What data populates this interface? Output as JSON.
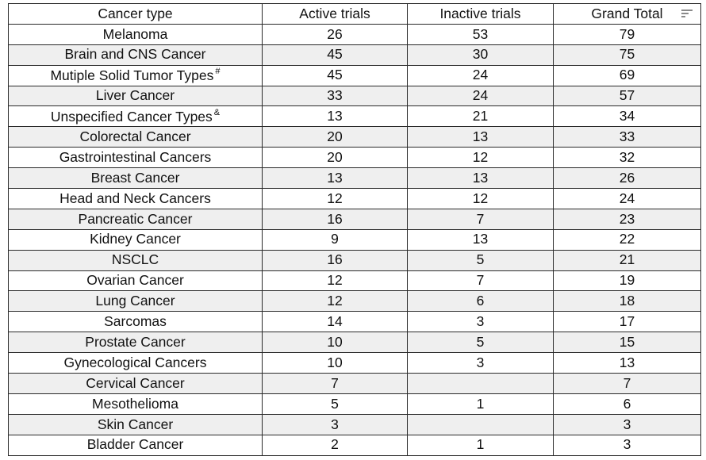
{
  "table": {
    "headers": [
      "Cancer type",
      "Active trials",
      "Inactive trials",
      "Grand Total"
    ],
    "sort_icon": "filter-sort-icon",
    "rows": [
      {
        "type": "Melanoma",
        "sup": "",
        "active": "26",
        "inactive": "53",
        "total": "79"
      },
      {
        "type": "Brain and CNS Cancer",
        "sup": "",
        "active": "45",
        "inactive": "30",
        "total": "75"
      },
      {
        "type": "Mutiple Solid Tumor Types",
        "sup": "#",
        "active": "45",
        "inactive": "24",
        "total": "69"
      },
      {
        "type": "Liver Cancer",
        "sup": "",
        "active": "33",
        "inactive": "24",
        "total": "57"
      },
      {
        "type": "Unspecified Cancer Types",
        "sup": "&",
        "active": "13",
        "inactive": "21",
        "total": "34"
      },
      {
        "type": "Colorectal Cancer",
        "sup": "",
        "active": "20",
        "inactive": "13",
        "total": "33"
      },
      {
        "type": "Gastrointestinal Cancers",
        "sup": "",
        "active": "20",
        "inactive": "12",
        "total": "32"
      },
      {
        "type": "Breast Cancer",
        "sup": "",
        "active": "13",
        "inactive": "13",
        "total": "26"
      },
      {
        "type": "Head and Neck Cancers",
        "sup": "",
        "active": "12",
        "inactive": "12",
        "total": "24"
      },
      {
        "type": "Pancreatic Cancer",
        "sup": "",
        "active": "16",
        "inactive": "7",
        "total": "23"
      },
      {
        "type": "Kidney Cancer",
        "sup": "",
        "active": "9",
        "inactive": "13",
        "total": "22"
      },
      {
        "type": "NSCLC",
        "sup": "",
        "active": "16",
        "inactive": "5",
        "total": "21"
      },
      {
        "type": "Ovarian Cancer",
        "sup": "",
        "active": "12",
        "inactive": "7",
        "total": "19"
      },
      {
        "type": "Lung Cancer",
        "sup": "",
        "active": "12",
        "inactive": "6",
        "total": "18"
      },
      {
        "type": "Sarcomas",
        "sup": "",
        "active": "14",
        "inactive": "3",
        "total": "17"
      },
      {
        "type": "Prostate Cancer",
        "sup": "",
        "active": "10",
        "inactive": "5",
        "total": "15"
      },
      {
        "type": "Gynecological Cancers",
        "sup": "",
        "active": "10",
        "inactive": "3",
        "total": "13"
      },
      {
        "type": "Cervical Cancer",
        "sup": "",
        "active": "7",
        "inactive": "",
        "total": "7"
      },
      {
        "type": "Mesothelioma",
        "sup": "",
        "active": "5",
        "inactive": "1",
        "total": "6"
      },
      {
        "type": "Skin Cancer",
        "sup": "",
        "active": "3",
        "inactive": "",
        "total": "3"
      },
      {
        "type": "Bladder Cancer",
        "sup": "",
        "active": "2",
        "inactive": "1",
        "total": "3"
      }
    ]
  }
}
